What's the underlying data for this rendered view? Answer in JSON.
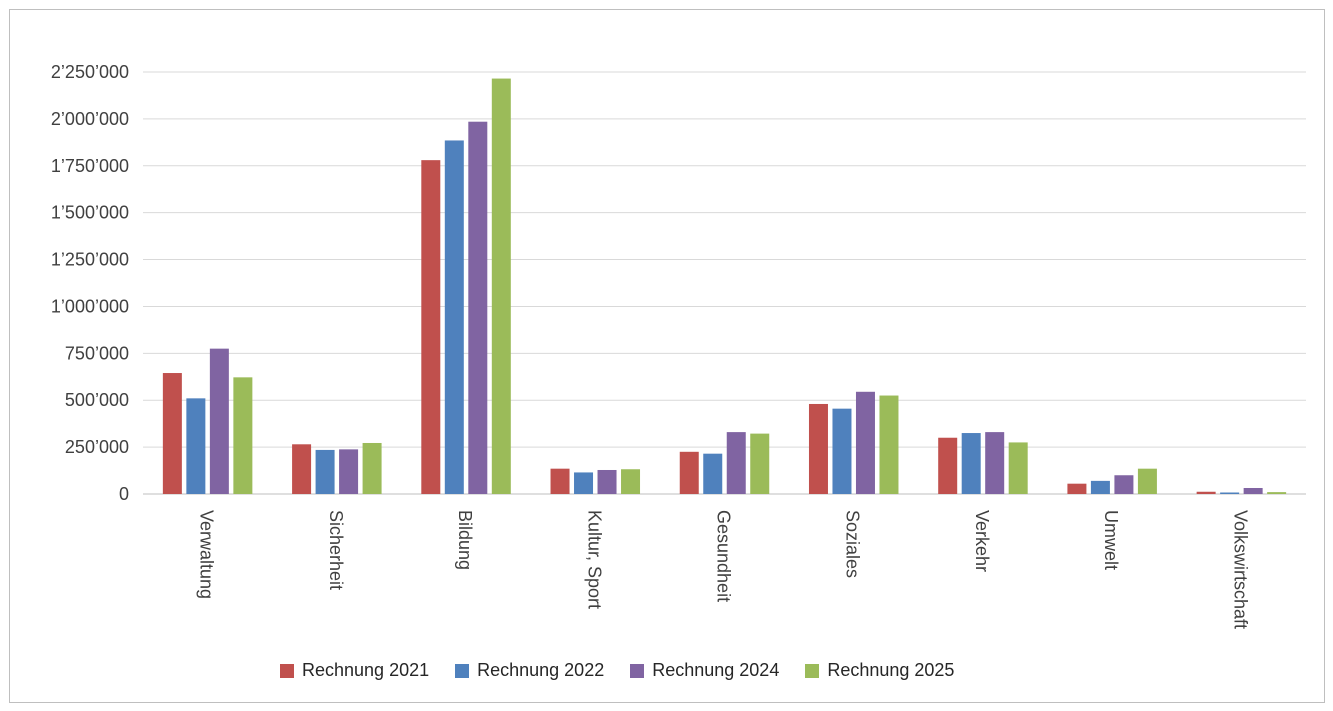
{
  "chart_data": {
    "type": "bar",
    "title": "",
    "xlabel": "",
    "ylabel": "",
    "ylim": [
      0,
      2250000
    ],
    "yticks": [
      0,
      250000,
      500000,
      750000,
      1000000,
      1250000,
      1500000,
      1750000,
      2000000,
      2250000
    ],
    "ytick_labels": [
      "0",
      "250’000",
      "500’000",
      "750’000",
      "1’000’000",
      "1’250’000",
      "1’500’000",
      "1’750’000",
      "2’000’000",
      "2’250’000"
    ],
    "grid": true,
    "legend_position": "bottom",
    "categories": [
      "Verwaltung",
      "Sicherheit",
      "Bildung",
      "Kultur, Sport",
      "Gesundheit",
      "Soziales",
      "Verkehr",
      "Umwelt",
      "Volkswirtschaft"
    ],
    "series": [
      {
        "name": "Rechnung 2021",
        "color": "#c0504d",
        "values": [
          645000,
          265000,
          1780000,
          135000,
          225000,
          480000,
          300000,
          55000,
          12000
        ]
      },
      {
        "name": "Rechnung 2022",
        "color": "#4f81bd",
        "values": [
          510000,
          235000,
          1885000,
          115000,
          215000,
          455000,
          325000,
          70000,
          8000
        ]
      },
      {
        "name": "Rechnung 2024",
        "color": "#8064a2",
        "values": [
          775000,
          238000,
          1985000,
          128000,
          330000,
          545000,
          330000,
          100000,
          32000
        ]
      },
      {
        "name": "Rechnung 2025",
        "color": "#9bbb59",
        "values": [
          622000,
          272000,
          2215000,
          132000,
          322000,
          525000,
          275000,
          135000,
          10000
        ]
      }
    ]
  }
}
